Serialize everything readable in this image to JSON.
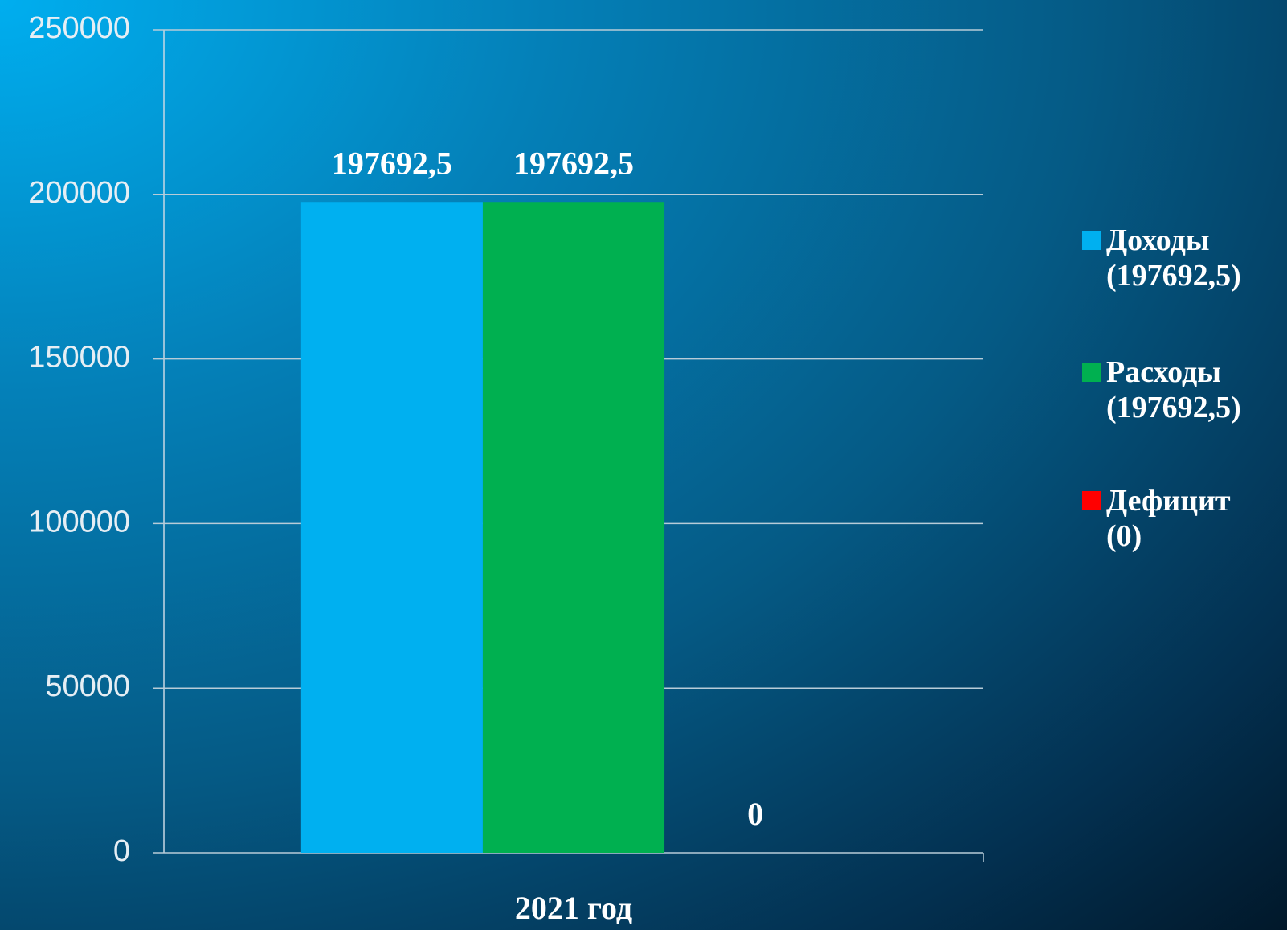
{
  "chart_data": {
    "type": "bar",
    "categories": [
      "2021 год"
    ],
    "series": [
      {
        "name": "Доходы (197692,5)",
        "color": "#00b0f0",
        "values": [
          197692.5
        ],
        "value_labels": [
          "197692,5"
        ]
      },
      {
        "name": "Расходы (197692,5)",
        "color": "#00b050",
        "values": [
          197692.5
        ],
        "value_labels": [
          "197692,5"
        ]
      },
      {
        "name": "Дефицит (0)",
        "color": "#ff0000",
        "values": [
          0
        ],
        "value_labels": [
          "0"
        ]
      }
    ],
    "ylim": [
      0,
      250000
    ],
    "yticks": [
      0,
      50000,
      100000,
      150000,
      200000,
      250000
    ],
    "grid": true,
    "legend": "right"
  }
}
